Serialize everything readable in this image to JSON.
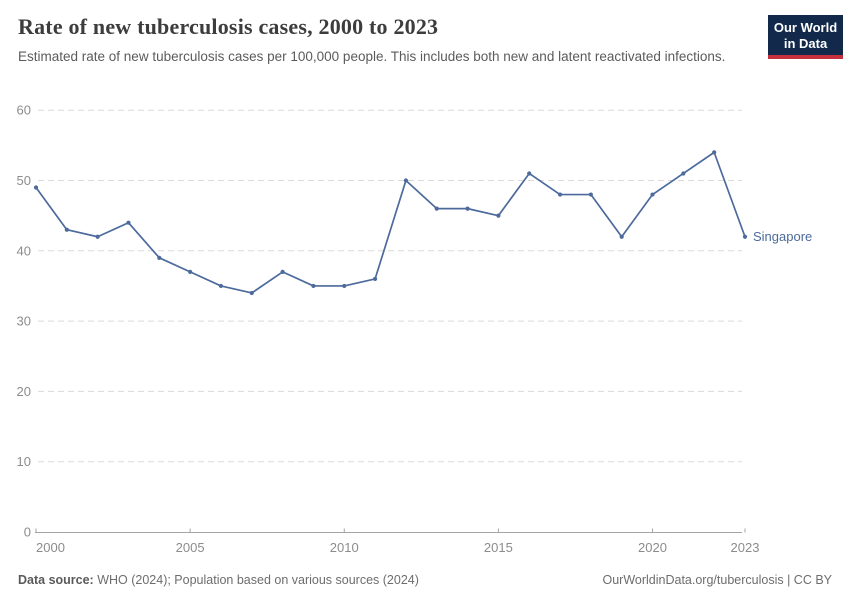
{
  "header": {
    "title": "Rate of new tuberculosis cases, 2000 to 2023",
    "subtitle": "Estimated rate of new tuberculosis cases per 100,000 people. This includes both new and latent reactivated infections."
  },
  "logo": {
    "line1": "Our World",
    "line2": "in Data",
    "bg_color": "#12294b",
    "accent_color": "#c5303e"
  },
  "chart_data": {
    "type": "line",
    "title": "Rate of new tuberculosis cases, 2000 to 2023",
    "xlabel": "",
    "ylabel": "",
    "ylim": [
      0,
      60
    ],
    "xlim": [
      2000,
      2023
    ],
    "grid": "horizontal-dashed",
    "legend_position": "end-of-line",
    "end_label": "Singapore",
    "y_ticks": [
      0,
      10,
      20,
      30,
      40,
      50,
      60
    ],
    "x_ticks": [
      2000,
      2005,
      2010,
      2015,
      2020,
      2023
    ],
    "colors": {
      "grid": "#dadada",
      "axis": "#a5a5a5",
      "tick_text": "#8c8c8c"
    },
    "series": [
      {
        "name": "Singapore",
        "color": "#4c6a9c",
        "x": [
          2000,
          2001,
          2002,
          2003,
          2004,
          2005,
          2006,
          2007,
          2008,
          2009,
          2010,
          2011,
          2012,
          2013,
          2014,
          2015,
          2016,
          2017,
          2018,
          2019,
          2020,
          2021,
          2022,
          2023
        ],
        "values": [
          49,
          43,
          42,
          44,
          39,
          37,
          35,
          34,
          37,
          35,
          35,
          36,
          50,
          46,
          46,
          45,
          51,
          48,
          48,
          42,
          48,
          51,
          54,
          42
        ]
      }
    ]
  },
  "footer": {
    "source_label": "Data source:",
    "source_text": " WHO (2024); Population based on various sources (2024)",
    "link_text": "OurWorldinData.org/tuberculosis | CC BY"
  }
}
